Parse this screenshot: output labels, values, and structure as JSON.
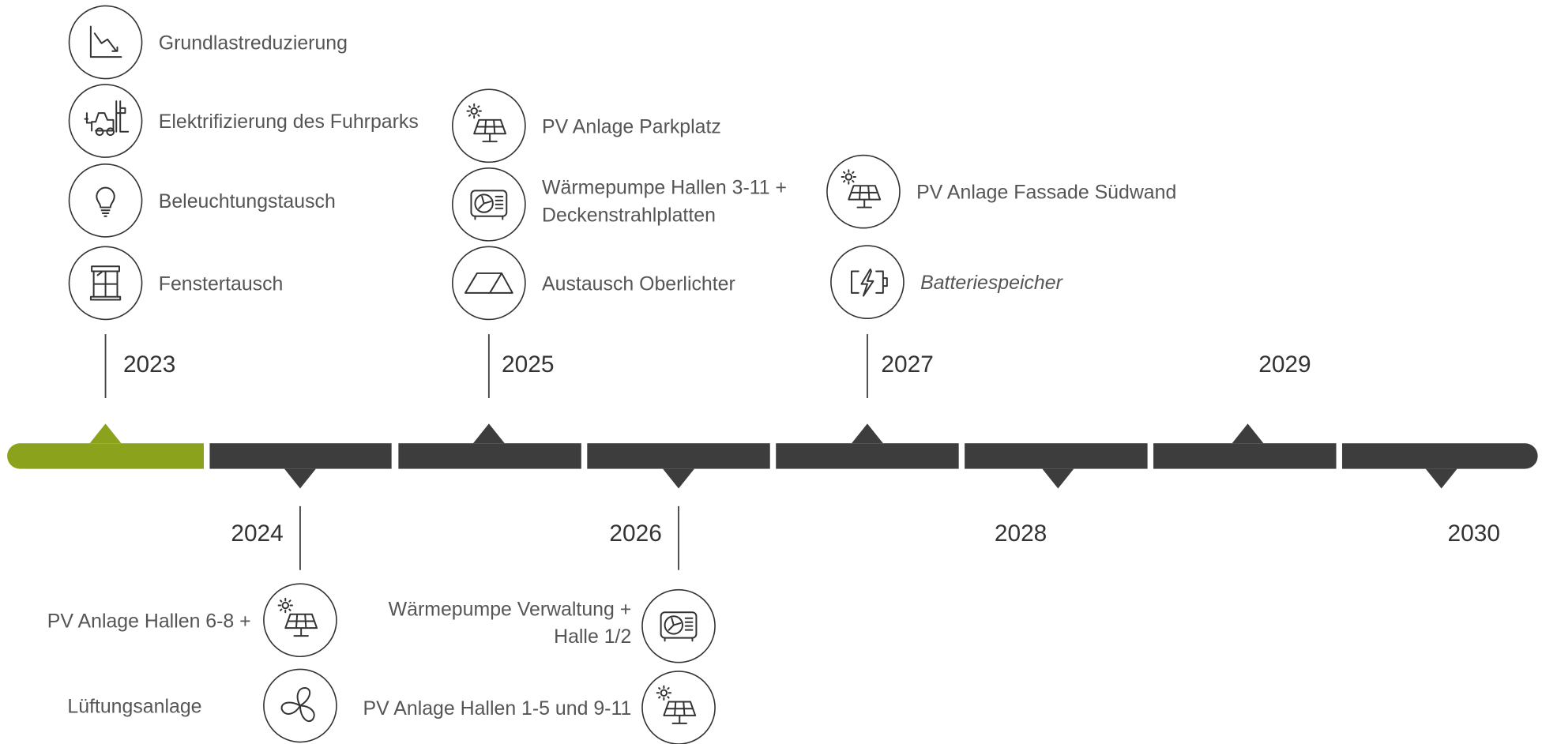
{
  "milestones": [
    {
      "year": "2023",
      "items": [
        {
          "lines": [
            "Grundlastreduzierung"
          ]
        },
        {
          "lines": [
            "Elektrifizierung des Fuhrparks"
          ]
        },
        {
          "lines": [
            "Beleuchtungstausch"
          ]
        },
        {
          "lines": [
            "Fenstertausch"
          ]
        }
      ]
    },
    {
      "year": "2024",
      "items": [
        {
          "lines": [
            "PV Anlage Hallen 6-8 +"
          ]
        },
        {
          "lines": [
            "Lüftungsanlage"
          ]
        }
      ]
    },
    {
      "year": "2025",
      "items": [
        {
          "lines": [
            "PV Anlage Parkplatz"
          ]
        },
        {
          "lines": [
            "Wärmepumpe Hallen 3-11 +",
            "Deckenstrahlplatten"
          ]
        },
        {
          "lines": [
            "Austausch Oberlichter"
          ]
        }
      ]
    },
    {
      "year": "2026",
      "items": [
        {
          "lines": [
            "Wärmepumpe Verwaltung +",
            "Halle 1/2"
          ]
        },
        {
          "lines": [
            "PV Anlage Hallen 1-5 und 9-11"
          ]
        }
      ]
    },
    {
      "year": "2027",
      "items": [
        {
          "lines": [
            "PV Anlage Fassade Südwand"
          ]
        },
        {
          "lines": [
            "Batteriespeicher"
          ]
        }
      ]
    },
    {
      "year": "2028",
      "items": []
    },
    {
      "year": "2029",
      "items": []
    },
    {
      "year": "2030",
      "items": []
    }
  ]
}
